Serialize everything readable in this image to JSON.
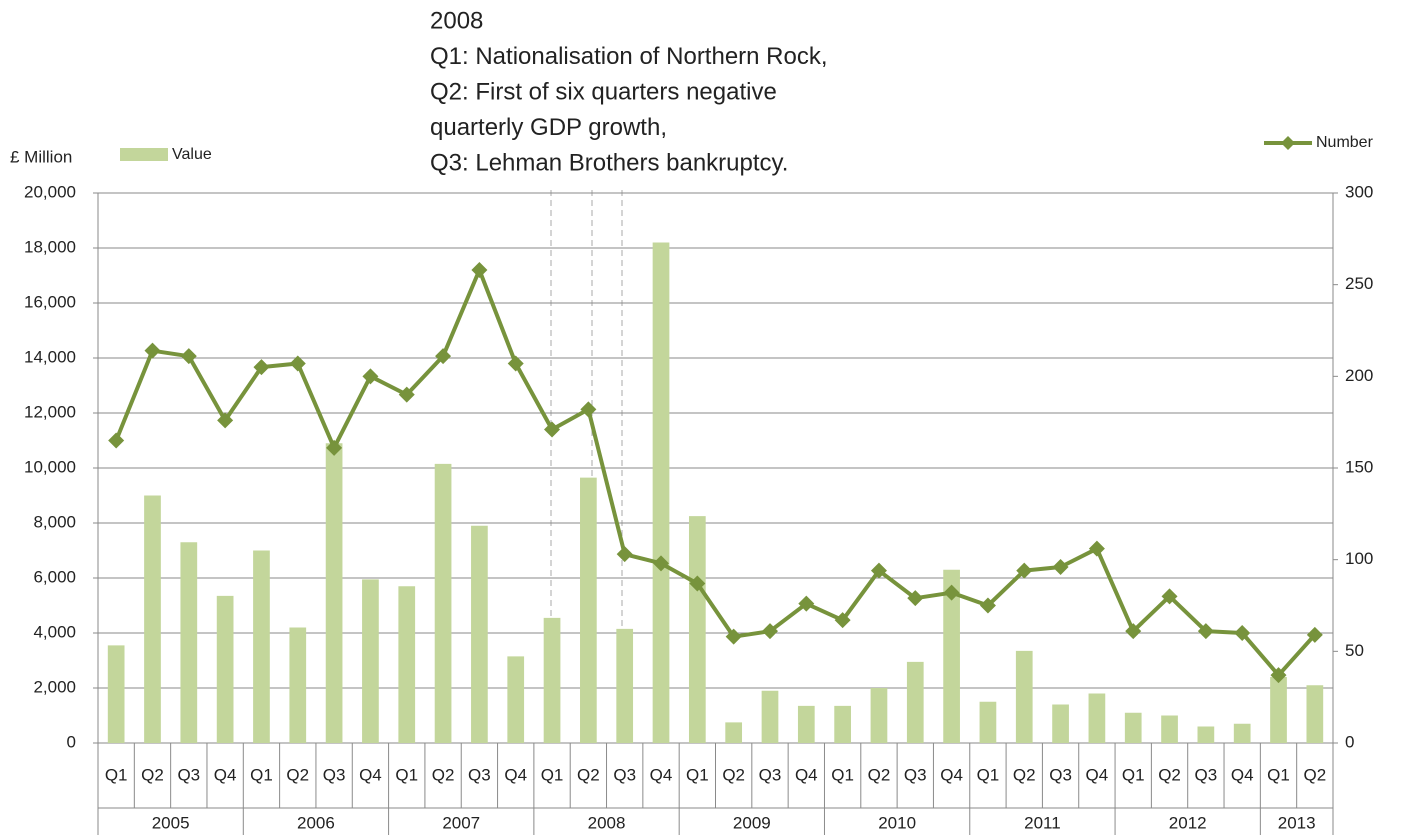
{
  "chart_data": {
    "type": "bar_line",
    "annotation": [
      "2008",
      "Q1: Nationalisation of Northern Rock,",
      "Q2: First of six quarters negative",
      "quarterly GDP growth,",
      "Q3: Lehman Brothers bankruptcy."
    ],
    "y_label": "£ Million",
    "categories": [
      "Q1",
      "Q2",
      "Q3",
      "Q4",
      "Q1",
      "Q2",
      "Q3",
      "Q4",
      "Q1",
      "Q2",
      "Q3",
      "Q4",
      "Q1",
      "Q2",
      "Q3",
      "Q4",
      "Q1",
      "Q2",
      "Q3",
      "Q4",
      "Q1",
      "Q2",
      "Q3",
      "Q4",
      "Q1",
      "Q2",
      "Q3",
      "Q4",
      "Q1",
      "Q2",
      "Q3",
      "Q4",
      "Q1",
      "Q2"
    ],
    "category_groups": [
      "2005",
      "2006",
      "2007",
      "2008",
      "2009",
      "2010",
      "2011",
      "2012",
      "2013"
    ],
    "series": [
      {
        "name": "Value",
        "type": "bar",
        "color": "#c3d69b",
        "axis": "y",
        "values": [
          3550,
          9000,
          7300,
          5350,
          7000,
          4200,
          10900,
          5950,
          5700,
          10150,
          7900,
          3150,
          4550,
          9650,
          4150,
          18200,
          8250,
          750,
          1900,
          1350,
          1350,
          2000,
          2950,
          6300,
          1500,
          3350,
          1400,
          1800,
          1100,
          1000,
          600,
          700,
          2400,
          2100
        ]
      },
      {
        "name": "Number",
        "type": "line",
        "color": "#77933c",
        "axis": "y2",
        "values": [
          165,
          214,
          211,
          176,
          205,
          207,
          161,
          200,
          190,
          211,
          258,
          207,
          171,
          182,
          103,
          98,
          87,
          58,
          61,
          76,
          67,
          94,
          79,
          82,
          75,
          94,
          96,
          106,
          61,
          80,
          61,
          60,
          37,
          59
        ]
      }
    ],
    "ylim": [
      0,
      20000
    ],
    "yticks": [
      0,
      {
        "value": 2000,
        "label": "2,000"
      },
      {
        "value": 4000,
        "label": "4,000"
      },
      {
        "value": 6000,
        "label": "6,000"
      },
      {
        "value": 8000,
        "label": "8,000"
      },
      {
        "value": 10000,
        "label": "10,000"
      },
      {
        "value": 12000,
        "label": "12,000"
      },
      {
        "value": 14000,
        "label": "14,000"
      },
      {
        "value": 16000,
        "label": "16,000"
      },
      {
        "value": 18000,
        "label": "18,000"
      },
      {
        "value": 20000,
        "label": "20,000"
      }
    ],
    "y2lim": [
      0,
      300
    ],
    "y2ticks": [
      0,
      50,
      100,
      150,
      200,
      250,
      300
    ],
    "grid": true
  }
}
